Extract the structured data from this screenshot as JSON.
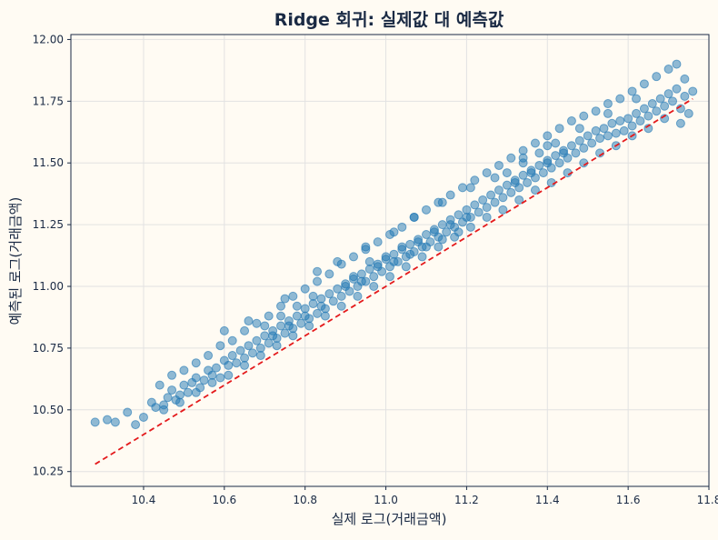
{
  "chart_data": {
    "type": "scatter",
    "title": "Ridge 회귀: 실제값 대 예측값",
    "xlabel": "실제 로그(거래금액)",
    "ylabel": "예측된 로그(거래금액)",
    "xlim": [
      10.22,
      11.8
    ],
    "ylim": [
      10.19,
      12.02
    ],
    "x_ticks": [
      "10.4",
      "10.6",
      "10.8",
      "11.0",
      "11.2",
      "11.4",
      "11.6",
      "11.8"
    ],
    "y_ticks": [
      "10.25",
      "10.50",
      "10.75",
      "11.00",
      "11.25",
      "11.50",
      "11.75",
      "12.00"
    ],
    "grid": true,
    "point_color": "#1f77b4",
    "reference_line_color": "#e41a1c",
    "reference_line": {
      "x": [
        10.28,
        11.76
      ],
      "y": [
        10.28,
        11.76
      ]
    },
    "series": [
      {
        "points": [
          [
            10.28,
            10.45
          ],
          [
            10.31,
            10.46
          ],
          [
            10.33,
            10.45
          ],
          [
            10.36,
            10.49
          ],
          [
            10.38,
            10.44
          ],
          [
            10.4,
            10.47
          ],
          [
            10.42,
            10.53
          ],
          [
            10.43,
            10.51
          ],
          [
            10.45,
            10.52
          ],
          [
            10.46,
            10.55
          ],
          [
            10.47,
            10.58
          ],
          [
            10.48,
            10.54
          ],
          [
            10.49,
            10.56
          ],
          [
            10.5,
            10.6
          ],
          [
            10.51,
            10.57
          ],
          [
            10.52,
            10.61
          ],
          [
            10.53,
            10.63
          ],
          [
            10.54,
            10.59
          ],
          [
            10.55,
            10.62
          ],
          [
            10.56,
            10.66
          ],
          [
            10.57,
            10.64
          ],
          [
            10.58,
            10.67
          ],
          [
            10.59,
            10.63
          ],
          [
            10.6,
            10.7
          ],
          [
            10.61,
            10.68
          ],
          [
            10.62,
            10.72
          ],
          [
            10.63,
            10.69
          ],
          [
            10.64,
            10.74
          ],
          [
            10.65,
            10.71
          ],
          [
            10.66,
            10.76
          ],
          [
            10.67,
            10.73
          ],
          [
            10.68,
            10.78
          ],
          [
            10.69,
            10.75
          ],
          [
            10.7,
            10.8
          ],
          [
            10.71,
            10.77
          ],
          [
            10.72,
            10.82
          ],
          [
            10.73,
            10.79
          ],
          [
            10.74,
            10.84
          ],
          [
            10.75,
            10.81
          ],
          [
            10.76,
            10.86
          ],
          [
            10.77,
            10.83
          ],
          [
            10.78,
            10.88
          ],
          [
            10.79,
            10.85
          ],
          [
            10.8,
            10.91
          ],
          [
            10.81,
            10.87
          ],
          [
            10.82,
            10.93
          ],
          [
            10.83,
            10.89
          ],
          [
            10.84,
            10.95
          ],
          [
            10.85,
            10.91
          ],
          [
            10.86,
            10.97
          ],
          [
            10.87,
            10.94
          ],
          [
            10.88,
            10.99
          ],
          [
            10.89,
            10.96
          ],
          [
            10.9,
            11.01
          ],
          [
            10.91,
            10.98
          ],
          [
            10.92,
            11.03
          ],
          [
            10.93,
            11.0
          ],
          [
            10.94,
            11.05
          ],
          [
            10.95,
            11.02
          ],
          [
            10.96,
            11.07
          ],
          [
            10.97,
            11.04
          ],
          [
            10.98,
            11.09
          ],
          [
            10.99,
            11.06
          ],
          [
            11.0,
            11.11
          ],
          [
            11.01,
            11.08
          ],
          [
            11.02,
            11.13
          ],
          [
            11.03,
            11.1
          ],
          [
            11.04,
            11.15
          ],
          [
            11.05,
            11.12
          ],
          [
            11.06,
            11.17
          ],
          [
            11.07,
            11.14
          ],
          [
            11.08,
            11.19
          ],
          [
            11.09,
            11.16
          ],
          [
            11.1,
            11.21
          ],
          [
            11.11,
            11.18
          ],
          [
            11.12,
            11.23
          ],
          [
            11.13,
            11.2
          ],
          [
            11.14,
            11.25
          ],
          [
            11.15,
            11.22
          ],
          [
            11.16,
            11.27
          ],
          [
            11.17,
            11.24
          ],
          [
            11.18,
            11.29
          ],
          [
            11.19,
            11.26
          ],
          [
            11.2,
            11.31
          ],
          [
            11.21,
            11.28
          ],
          [
            11.22,
            11.33
          ],
          [
            11.23,
            11.3
          ],
          [
            11.24,
            11.35
          ],
          [
            11.25,
            11.32
          ],
          [
            11.26,
            11.37
          ],
          [
            11.27,
            11.34
          ],
          [
            11.28,
            11.39
          ],
          [
            11.29,
            11.36
          ],
          [
            11.3,
            11.41
          ],
          [
            11.31,
            11.38
          ],
          [
            11.32,
            11.43
          ],
          [
            11.33,
            11.4
          ],
          [
            11.34,
            11.45
          ],
          [
            11.35,
            11.42
          ],
          [
            11.36,
            11.47
          ],
          [
            11.37,
            11.44
          ],
          [
            11.38,
            11.49
          ],
          [
            11.39,
            11.46
          ],
          [
            11.4,
            11.51
          ],
          [
            11.41,
            11.48
          ],
          [
            11.42,
            11.53
          ],
          [
            11.43,
            11.5
          ],
          [
            11.44,
            11.55
          ],
          [
            11.45,
            11.52
          ],
          [
            11.46,
            11.57
          ],
          [
            11.47,
            11.54
          ],
          [
            11.48,
            11.59
          ],
          [
            11.49,
            11.56
          ],
          [
            11.5,
            11.61
          ],
          [
            11.51,
            11.58
          ],
          [
            11.52,
            11.63
          ],
          [
            11.53,
            11.6
          ],
          [
            11.54,
            11.64
          ],
          [
            11.55,
            11.61
          ],
          [
            11.56,
            11.66
          ],
          [
            11.57,
            11.62
          ],
          [
            11.58,
            11.67
          ],
          [
            11.59,
            11.63
          ],
          [
            11.6,
            11.68
          ],
          [
            11.61,
            11.65
          ],
          [
            11.62,
            11.7
          ],
          [
            11.63,
            11.67
          ],
          [
            11.64,
            11.72
          ],
          [
            11.65,
            11.69
          ],
          [
            11.66,
            11.74
          ],
          [
            11.67,
            11.71
          ],
          [
            11.68,
            11.76
          ],
          [
            11.69,
            11.73
          ],
          [
            11.7,
            11.78
          ],
          [
            11.71,
            11.75
          ],
          [
            11.72,
            11.8
          ],
          [
            11.73,
            11.72
          ],
          [
            11.74,
            11.77
          ],
          [
            11.75,
            11.7
          ],
          [
            11.76,
            11.79
          ],
          [
            10.44,
            10.6
          ],
          [
            10.47,
            10.64
          ],
          [
            10.5,
            10.66
          ],
          [
            10.53,
            10.69
          ],
          [
            10.56,
            10.72
          ],
          [
            10.59,
            10.76
          ],
          [
            10.62,
            10.78
          ],
          [
            10.65,
            10.82
          ],
          [
            10.68,
            10.85
          ],
          [
            10.71,
            10.88
          ],
          [
            10.74,
            10.92
          ],
          [
            10.77,
            10.96
          ],
          [
            10.8,
            10.99
          ],
          [
            10.83,
            11.02
          ],
          [
            10.86,
            11.05
          ],
          [
            10.89,
            11.09
          ],
          [
            10.92,
            11.12
          ],
          [
            10.95,
            11.15
          ],
          [
            10.98,
            11.18
          ],
          [
            11.01,
            11.21
          ],
          [
            11.04,
            11.24
          ],
          [
            11.07,
            11.28
          ],
          [
            11.1,
            11.31
          ],
          [
            11.13,
            11.34
          ],
          [
            11.16,
            11.37
          ],
          [
            11.19,
            11.4
          ],
          [
            11.22,
            11.43
          ],
          [
            11.25,
            11.46
          ],
          [
            11.28,
            11.49
          ],
          [
            11.31,
            11.52
          ],
          [
            11.34,
            11.55
          ],
          [
            11.37,
            11.58
          ],
          [
            11.4,
            11.61
          ],
          [
            11.43,
            11.64
          ],
          [
            11.46,
            11.67
          ],
          [
            11.49,
            11.69
          ],
          [
            11.52,
            11.71
          ],
          [
            11.55,
            11.74
          ],
          [
            11.58,
            11.76
          ],
          [
            11.61,
            11.79
          ],
          [
            11.64,
            11.82
          ],
          [
            11.67,
            11.85
          ],
          [
            11.7,
            11.88
          ],
          [
            11.72,
            11.9
          ],
          [
            11.74,
            11.84
          ],
          [
            10.45,
            10.5
          ],
          [
            10.49,
            10.53
          ],
          [
            10.53,
            10.57
          ],
          [
            10.57,
            10.61
          ],
          [
            10.61,
            10.64
          ],
          [
            10.65,
            10.68
          ],
          [
            10.69,
            10.72
          ],
          [
            10.73,
            10.76
          ],
          [
            10.77,
            10.8
          ],
          [
            10.81,
            10.84
          ],
          [
            10.85,
            10.88
          ],
          [
            10.89,
            10.92
          ],
          [
            10.93,
            10.96
          ],
          [
            10.97,
            11.0
          ],
          [
            11.01,
            11.04
          ],
          [
            11.05,
            11.08
          ],
          [
            11.09,
            11.12
          ],
          [
            11.13,
            11.16
          ],
          [
            11.17,
            11.2
          ],
          [
            11.21,
            11.24
          ],
          [
            11.25,
            11.28
          ],
          [
            11.29,
            11.31
          ],
          [
            11.33,
            11.35
          ],
          [
            11.37,
            11.39
          ],
          [
            11.41,
            11.42
          ],
          [
            11.45,
            11.46
          ],
          [
            11.49,
            11.5
          ],
          [
            11.53,
            11.54
          ],
          [
            11.57,
            11.57
          ],
          [
            11.61,
            11.61
          ],
          [
            11.65,
            11.64
          ],
          [
            11.69,
            11.68
          ],
          [
            11.73,
            11.66
          ],
          [
            10.9,
            11.0
          ],
          [
            10.92,
            11.04
          ],
          [
            10.94,
            11.02
          ],
          [
            10.96,
            11.1
          ],
          [
            10.98,
            11.08
          ],
          [
            11.0,
            11.12
          ],
          [
            11.02,
            11.1
          ],
          [
            11.04,
            11.16
          ],
          [
            11.06,
            11.13
          ],
          [
            11.08,
            11.18
          ],
          [
            11.1,
            11.16
          ],
          [
            11.12,
            11.22
          ],
          [
            11.14,
            11.19
          ],
          [
            11.16,
            11.25
          ],
          [
            11.18,
            11.22
          ],
          [
            11.2,
            11.28
          ],
          [
            10.7,
            10.84
          ],
          [
            10.72,
            10.8
          ],
          [
            10.74,
            10.88
          ],
          [
            10.76,
            10.84
          ],
          [
            10.78,
            10.92
          ],
          [
            10.8,
            10.88
          ],
          [
            10.82,
            10.96
          ],
          [
            10.84,
            10.92
          ],
          [
            11.3,
            11.46
          ],
          [
            11.32,
            11.42
          ],
          [
            11.34,
            11.5
          ],
          [
            11.36,
            11.46
          ],
          [
            11.38,
            11.54
          ],
          [
            11.4,
            11.5
          ],
          [
            11.42,
            11.58
          ],
          [
            11.44,
            11.54
          ],
          [
            10.6,
            10.82
          ],
          [
            10.66,
            10.86
          ],
          [
            10.75,
            10.95
          ],
          [
            10.83,
            11.06
          ],
          [
            10.88,
            11.1
          ],
          [
            10.95,
            11.16
          ],
          [
            11.02,
            11.22
          ],
          [
            11.07,
            11.28
          ],
          [
            11.14,
            11.34
          ],
          [
            11.21,
            11.4
          ],
          [
            11.27,
            11.44
          ],
          [
            11.34,
            11.52
          ],
          [
            11.4,
            11.57
          ],
          [
            11.48,
            11.64
          ],
          [
            11.55,
            11.7
          ],
          [
            11.62,
            11.76
          ]
        ]
      }
    ]
  }
}
